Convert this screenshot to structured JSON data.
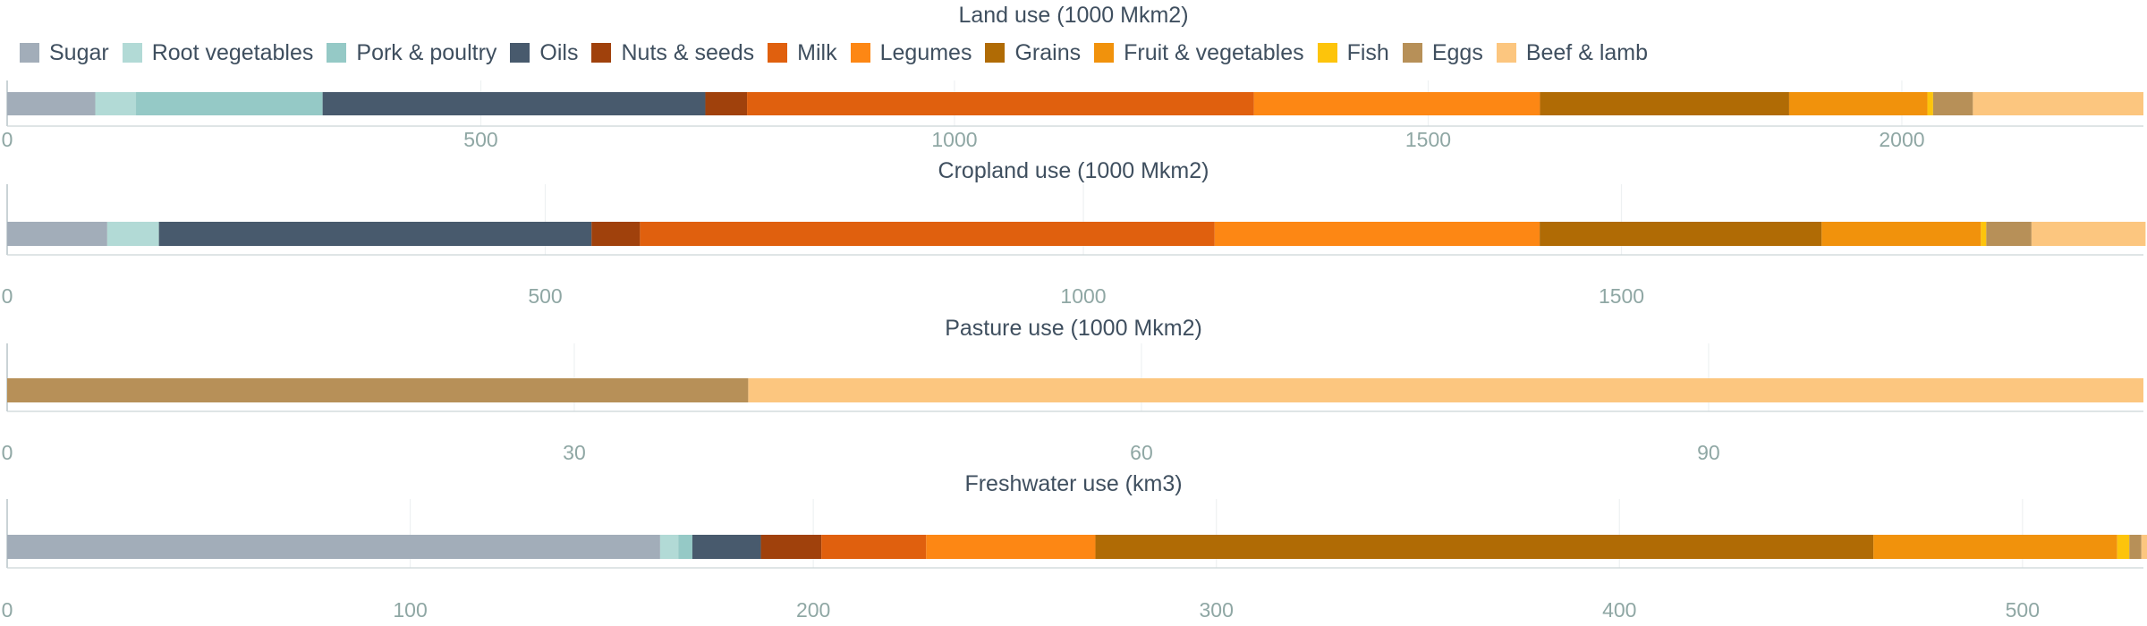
{
  "chart_data": {
    "type": "bar",
    "orientation": "horizontal-stacked",
    "legend": {
      "placement": "top-left",
      "items": [
        {
          "name": "Sugar",
          "color": "#a2adb9"
        },
        {
          "name": "Root vegetables",
          "color": "#b2dad6"
        },
        {
          "name": "Pork & poultry",
          "color": "#95c9c6"
        },
        {
          "name": "Oils",
          "color": "#485a6d"
        },
        {
          "name": "Nuts & seeds",
          "color": "#a0410c"
        },
        {
          "name": "Milk",
          "color": "#e0600e"
        },
        {
          "name": "Legumes",
          "color": "#fd8714"
        },
        {
          "name": "Grains",
          "color": "#b06b05"
        },
        {
          "name": "Fruit & vegetables",
          "color": "#f1920c"
        },
        {
          "name": "Fish",
          "color": "#fdc40b"
        },
        {
          "name": "Eggs",
          "color": "#b79058"
        },
        {
          "name": "Beef & lamb",
          "color": "#fcc67f"
        }
      ]
    },
    "grid": true,
    "panels": [
      {
        "title": "Land use (1000 Mkm2)",
        "xlim": [
          0,
          2255
        ],
        "ticks": [
          0,
          500,
          1000,
          1500,
          2000
        ],
        "segments": [
          {
            "name": "Sugar",
            "value": 93
          },
          {
            "name": "Root vegetables",
            "value": 43
          },
          {
            "name": "Pork & poultry",
            "value": 197
          },
          {
            "name": "Oils",
            "value": 404
          },
          {
            "name": "Nuts & seeds",
            "value": 44
          },
          {
            "name": "Milk",
            "value": 535
          },
          {
            "name": "Legumes",
            "value": 302
          },
          {
            "name": "Grains",
            "value": 263
          },
          {
            "name": "Fruit & vegetables",
            "value": 146
          },
          {
            "name": "Fish",
            "value": 6
          },
          {
            "name": "Eggs",
            "value": 42
          },
          {
            "name": "Beef & lamb",
            "value": 180
          }
        ]
      },
      {
        "title": "Cropland use (1000 Mkm2)",
        "xlim": [
          0,
          1985
        ],
        "ticks": [
          0,
          500,
          1000,
          1500
        ],
        "segments": [
          {
            "name": "Sugar",
            "value": 93
          },
          {
            "name": "Root vegetables",
            "value": 48
          },
          {
            "name": "Pork & poultry",
            "value": 0
          },
          {
            "name": "Oils",
            "value": 402
          },
          {
            "name": "Nuts & seeds",
            "value": 45
          },
          {
            "name": "Milk",
            "value": 534
          },
          {
            "name": "Legumes",
            "value": 302
          },
          {
            "name": "Grains",
            "value": 262
          },
          {
            "name": "Fruit & vegetables",
            "value": 148
          },
          {
            "name": "Fish",
            "value": 5
          },
          {
            "name": "Eggs",
            "value": 42
          },
          {
            "name": "Beef & lamb",
            "value": 106
          }
        ]
      },
      {
        "title": "Pasture use (1000 Mkm2)",
        "xlim": [
          0,
          113
        ],
        "ticks": [
          0,
          30,
          60,
          90
        ],
        "segments": [
          {
            "name": "Eggs",
            "value": 39.2
          },
          {
            "name": "Beef & lamb",
            "value": 73.8
          }
        ]
      },
      {
        "title": "Freshwater use (km3)",
        "xlim": [
          0,
          530
        ],
        "ticks": [
          0,
          100,
          200,
          300,
          400,
          500
        ],
        "segments": [
          {
            "name": "Sugar",
            "value": 162
          },
          {
            "name": "Root vegetables",
            "value": 4.5
          },
          {
            "name": "Pork & poultry",
            "value": 3.5
          },
          {
            "name": "Oils",
            "value": 17
          },
          {
            "name": "Nuts & seeds",
            "value": 15
          },
          {
            "name": "Milk",
            "value": 26
          },
          {
            "name": "Legumes",
            "value": 42
          },
          {
            "name": "Grains",
            "value": 193
          },
          {
            "name": "Fruit & vegetables",
            "value": 60.5
          },
          {
            "name": "Fish",
            "value": 3
          },
          {
            "name": "Eggs",
            "value": 3
          },
          {
            "name": "Beef & lamb",
            "value": 1.5
          }
        ]
      }
    ]
  }
}
